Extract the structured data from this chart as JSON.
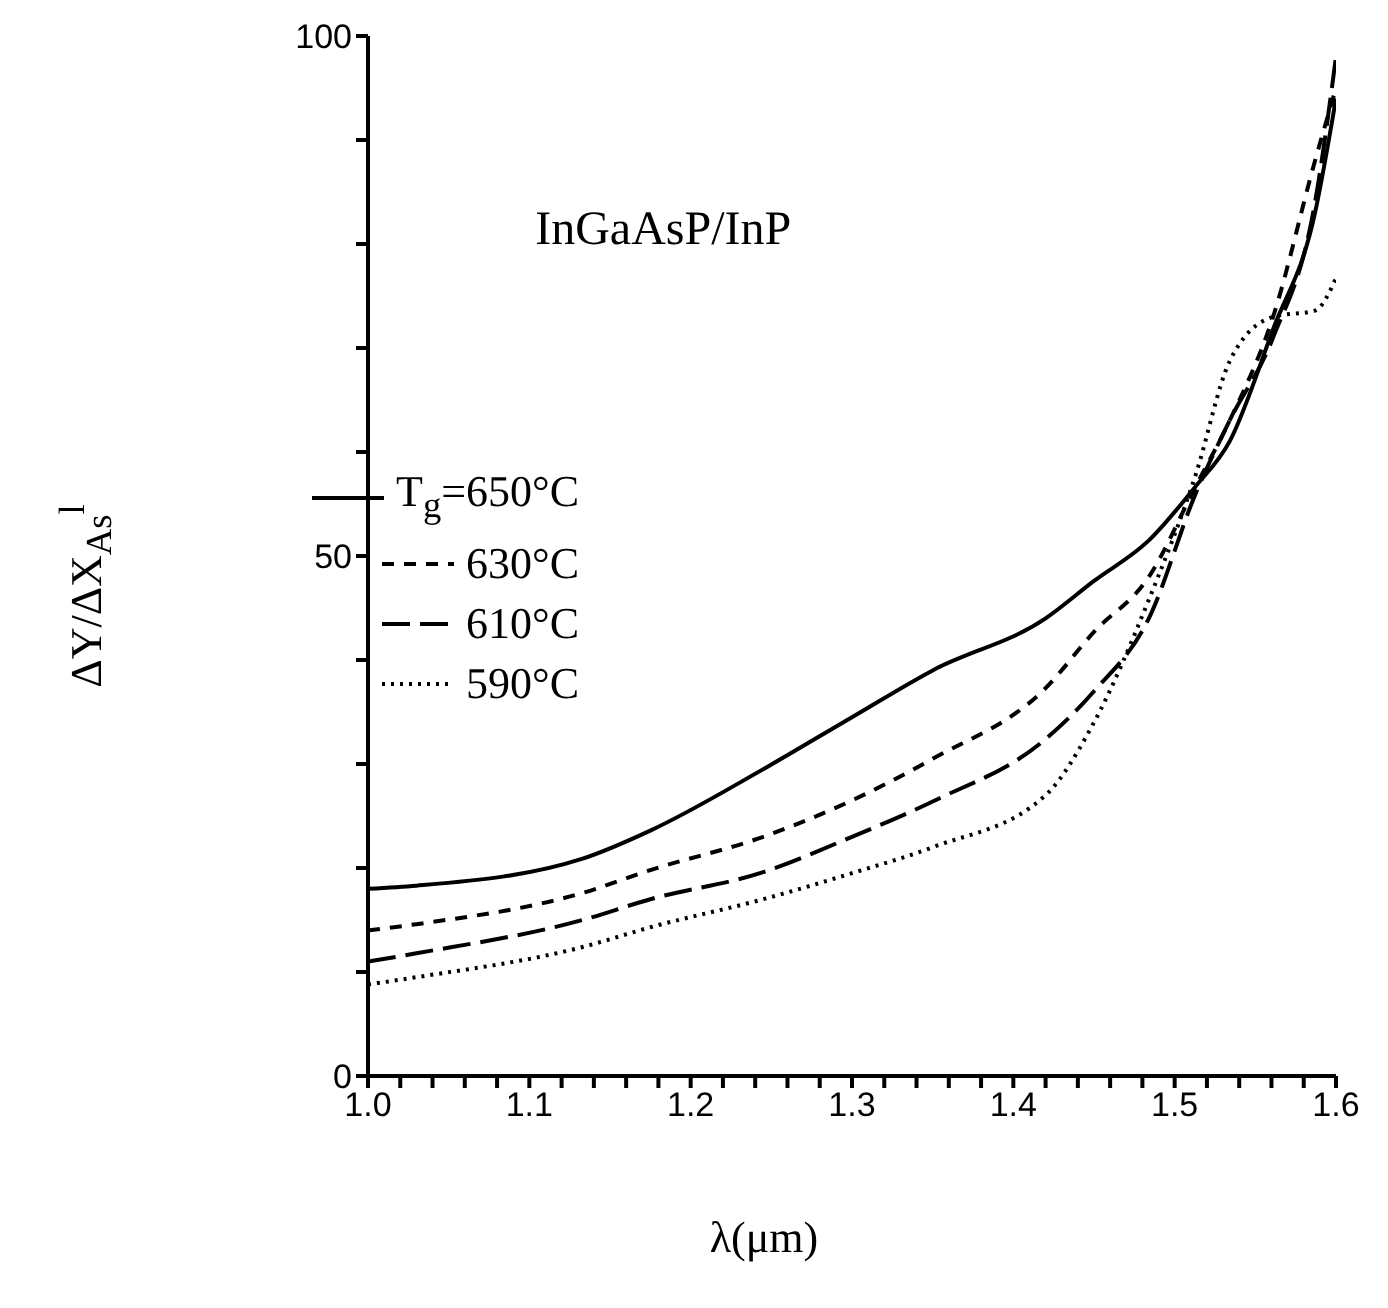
{
  "chart_data": {
    "type": "line",
    "annotations": [
      "InGaAsP/InP"
    ],
    "xlabel": "λ(μm)",
    "ylabel": "ΔY/ΔX$_{As}$$^{l}$",
    "x": [
      1.0,
      1.03,
      1.133,
      1.175,
      1.245,
      1.3,
      1.35,
      1.42,
      1.45,
      1.484,
      1.513,
      1.534,
      1.561,
      1.587,
      1.6
    ],
    "series": [
      {
        "name": "T$_{g}$=650°C",
        "color": "#000000",
        "line_style": "solid",
        "values": [
          18,
          18.3,
          20.9,
          23.6,
          29.5,
          34.5,
          39,
          44,
          47.6,
          51.5,
          56.7,
          61,
          71.8,
          83,
          94
        ]
      },
      {
        "name": "630°C",
        "color": "#000000",
        "line_style": "dashed",
        "values": [
          14,
          14.6,
          17.6,
          19.8,
          23,
          26.5,
          30.5,
          37.3,
          42.7,
          48,
          56.7,
          63,
          73,
          88,
          95
        ]
      },
      {
        "name": "610°C",
        "color": "#000000",
        "line_style": "dashed",
        "values": [
          11,
          11.8,
          15,
          17,
          19.6,
          23,
          26.4,
          32.4,
          37,
          44,
          56,
          63,
          71,
          84,
          98
        ]
      },
      {
        "name": "590°C",
        "color": "#000000",
        "line_style": "dotted",
        "values": [
          8.8,
          9.5,
          12.4,
          14.3,
          17,
          19.5,
          22,
          27,
          34,
          45.8,
          57.8,
          68.7,
          73,
          73.6,
          76.7
        ]
      }
    ],
    "xlim": [
      1.0,
      1.6
    ],
    "xticks": [
      {
        "value": 1.0,
        "label": "1.0"
      },
      {
        "value": 1.02,
        "label": null
      },
      {
        "value": 1.04,
        "label": null
      },
      {
        "value": 1.06,
        "label": null
      },
      {
        "value": 1.08,
        "label": null
      },
      {
        "value": 1.1,
        "label": "1.1"
      },
      {
        "value": 1.12,
        "label": null
      },
      {
        "value": 1.14,
        "label": null
      },
      {
        "value": 1.16,
        "label": null
      },
      {
        "value": 1.18,
        "label": null
      },
      {
        "value": 1.2,
        "label": "1.2"
      },
      {
        "value": 1.22,
        "label": null
      },
      {
        "value": 1.24,
        "label": null
      },
      {
        "value": 1.26,
        "label": null
      },
      {
        "value": 1.28,
        "label": null
      },
      {
        "value": 1.3,
        "label": "1.3"
      },
      {
        "value": 1.32,
        "label": null
      },
      {
        "value": 1.34,
        "label": null
      },
      {
        "value": 1.36,
        "label": null
      },
      {
        "value": 1.38,
        "label": null
      },
      {
        "value": 1.4,
        "label": "1.4"
      },
      {
        "value": 1.42,
        "label": null
      },
      {
        "value": 1.44,
        "label": null
      },
      {
        "value": 1.46,
        "label": null
      },
      {
        "value": 1.48,
        "label": null
      },
      {
        "value": 1.5,
        "label": "1.5"
      },
      {
        "value": 1.52,
        "label": null
      },
      {
        "value": 1.54,
        "label": null
      },
      {
        "value": 1.56,
        "label": null
      },
      {
        "value": 1.58,
        "label": null
      },
      {
        "value": 1.6,
        "label": "1.6"
      }
    ],
    "ylim": [
      0,
      100
    ],
    "yticks": [
      0,
      {
        "value": 10,
        "label": null
      },
      {
        "value": 20,
        "label": null
      },
      {
        "value": 30,
        "label": null
      },
      {
        "value": 40,
        "label": null
      },
      50,
      {
        "value": 60,
        "label": null
      },
      {
        "value": 70,
        "label": null
      },
      {
        "value": 80,
        "label": null
      },
      {
        "value": 90,
        "label": null
      },
      100
    ],
    "grid": false,
    "legend": "left",
    "marker": "none"
  }
}
